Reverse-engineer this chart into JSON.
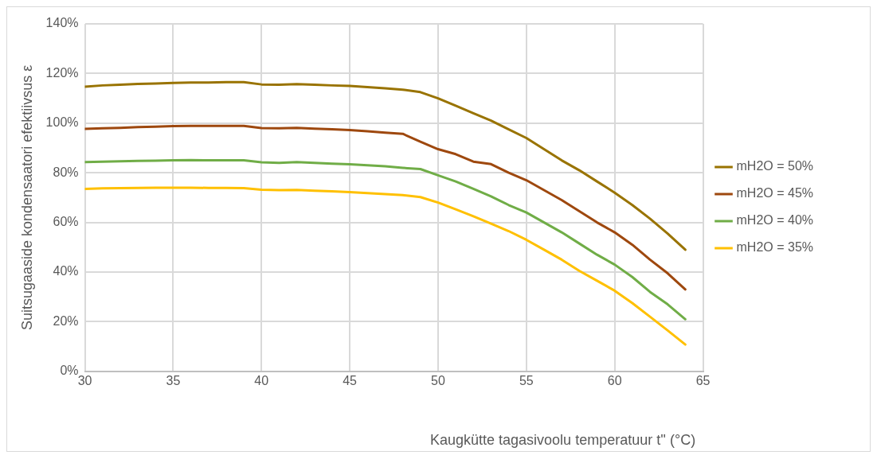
{
  "chart_data": {
    "type": "line",
    "xlabel": "Kaugkütte tagasivoolu temperatuur t'' (°C)",
    "ylabel": "Suitsugaaside kondensaatori efektiivsus ε",
    "x": [
      30,
      31,
      32,
      33,
      34,
      35,
      36,
      37,
      38,
      39,
      40,
      41,
      42,
      43,
      44,
      45,
      46,
      47,
      48,
      49,
      50,
      51,
      52,
      53,
      54,
      55,
      56,
      57,
      58,
      59,
      60,
      61,
      62,
      63,
      64
    ],
    "series": [
      {
        "name": "mH2O = 50%",
        "color": "#997300",
        "values": [
          114.7,
          115.2,
          115.5,
          115.8,
          116.0,
          116.2,
          116.4,
          116.4,
          116.5,
          116.5,
          115.6,
          115.5,
          115.7,
          115.5,
          115.2,
          115.0,
          114.5,
          114.0,
          113.5,
          112.5,
          110,
          107,
          104,
          101,
          97.5,
          94,
          89.5,
          85,
          81,
          76.5,
          72,
          67,
          61.5,
          55.5,
          49
        ]
      },
      {
        "name": "mH2O = 45%",
        "color": "#9e480e",
        "values": [
          97.7,
          97.9,
          98.1,
          98.4,
          98.6,
          98.8,
          98.9,
          98.9,
          98.9,
          98.9,
          98.0,
          97.9,
          98.1,
          97.8,
          97.5,
          97.2,
          96.7,
          96.2,
          95.7,
          92.5,
          89.5,
          87.5,
          84.5,
          83.5,
          80,
          77,
          73,
          69,
          64.5,
          60,
          56,
          51,
          45,
          39.5,
          33
        ]
      },
      {
        "name": "mH2O = 40%",
        "color": "#70ad47",
        "values": [
          84.3,
          84.5,
          84.6,
          84.8,
          84.9,
          85.0,
          85.1,
          85.0,
          85.0,
          85.0,
          84.2,
          84.0,
          84.3,
          84.0,
          83.7,
          83.4,
          83.0,
          82.6,
          82.0,
          81.5,
          79,
          76.5,
          73.5,
          70.5,
          67,
          64,
          60,
          56,
          51.5,
          47,
          43,
          38,
          32,
          27,
          21
        ]
      },
      {
        "name": "mH2O = 35%",
        "color": "#ffc000",
        "values": [
          73.5,
          73.7,
          73.8,
          73.9,
          74.0,
          74.0,
          74.0,
          73.9,
          73.9,
          73.8,
          73.2,
          73.0,
          73.1,
          72.8,
          72.5,
          72.2,
          71.8,
          71.4,
          71.0,
          70.2,
          68,
          65.3,
          62.5,
          59.5,
          56.5,
          53,
          49,
          45,
          40.5,
          36.5,
          32.5,
          27.5,
          22,
          16.5,
          10.8
        ]
      }
    ],
    "xlim": [
      30,
      65
    ],
    "xticks": [
      30,
      35,
      40,
      45,
      50,
      55,
      60,
      65
    ],
    "ylim": [
      0,
      140
    ],
    "yticks": [
      {
        "value": 0,
        "label": "0%"
      },
      {
        "value": 20,
        "label": "20%"
      },
      {
        "value": 40,
        "label": "40%"
      },
      {
        "value": 60,
        "label": "60%"
      },
      {
        "value": 80,
        "label": "80%"
      },
      {
        "value": 100,
        "label": "100%"
      },
      {
        "value": 120,
        "label": "120%"
      },
      {
        "value": 140,
        "label": "140%"
      }
    ],
    "grid": true,
    "legend": "right",
    "marker": "none",
    "line_style": "solid"
  }
}
